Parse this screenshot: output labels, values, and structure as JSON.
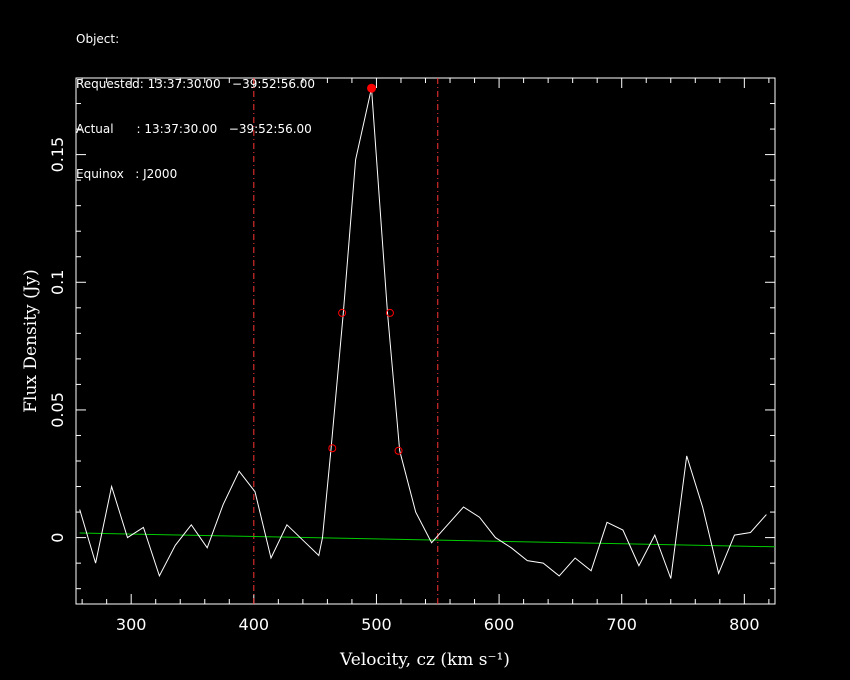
{
  "header": {
    "object_line": "Object:",
    "requested_line": "Requested: 13:37:30.00   −39:52:56.00",
    "actual_line": "Actual      : 13:37:30.00   −39:52:56.00",
    "equinox_line": "Equinox   : J2000"
  },
  "chart_data": {
    "type": "line",
    "xlabel": "Velocity, cz (km s⁻¹)",
    "ylabel": "Flux Density (Jy)",
    "xlim": [
      255,
      825
    ],
    "ylim": [
      -0.026,
      0.18
    ],
    "xticks": [
      300,
      400,
      500,
      600,
      700,
      800
    ],
    "xtick_labels": [
      "300",
      "400",
      "500",
      "600",
      "700",
      "800"
    ],
    "yticks": [
      0,
      0.05,
      0.1,
      0.15
    ],
    "ytick_labels": [
      "0",
      "0.05",
      "0.1",
      "0.15"
    ],
    "colors": {
      "spectrum": "#ffffff",
      "baseline": "#00cc00",
      "markers": "#ff0000",
      "window_lines": "#ff3333",
      "axes": "#ffffff"
    },
    "series": [
      {
        "x": [
          258,
          271,
          284,
          297,
          310,
          323,
          336,
          349,
          362,
          375,
          388,
          401,
          414,
          427,
          440,
          453,
          456,
          463,
          473,
          483,
          496,
          509,
          519,
          532,
          545,
          558,
          571,
          584,
          597,
          610,
          623,
          636,
          649,
          662,
          675,
          688,
          701,
          714,
          727,
          740,
          753,
          766,
          779,
          792,
          805,
          818
        ],
        "values": [
          0.011,
          -0.01,
          0.02,
          0.0,
          0.004,
          -0.015,
          -0.003,
          0.005,
          -0.004,
          0.013,
          0.026,
          0.018,
          -0.008,
          0.005,
          -0.001,
          -0.007,
          0.0,
          0.035,
          0.088,
          0.148,
          0.176,
          0.088,
          0.034,
          0.01,
          -0.002,
          0.005,
          0.012,
          0.008,
          0.0,
          -0.004,
          -0.009,
          -0.01,
          -0.015,
          -0.008,
          -0.013,
          0.006,
          0.003,
          -0.011,
          0.001,
          -0.016,
          0.032,
          0.012,
          -0.014,
          0.001,
          0.002,
          0.009
        ]
      }
    ],
    "baseline": {
      "x": [
        258,
        825
      ],
      "values": [
        0.0018,
        -0.0036
      ]
    },
    "window_lines_x": [
      400,
      550
    ],
    "peak_marker": {
      "x": 496,
      "y": 0.176
    },
    "width_markers": [
      {
        "x": 464,
        "y": 0.035
      },
      {
        "x": 472,
        "y": 0.088
      },
      {
        "x": 511,
        "y": 0.088
      },
      {
        "x": 518,
        "y": 0.034
      }
    ]
  }
}
